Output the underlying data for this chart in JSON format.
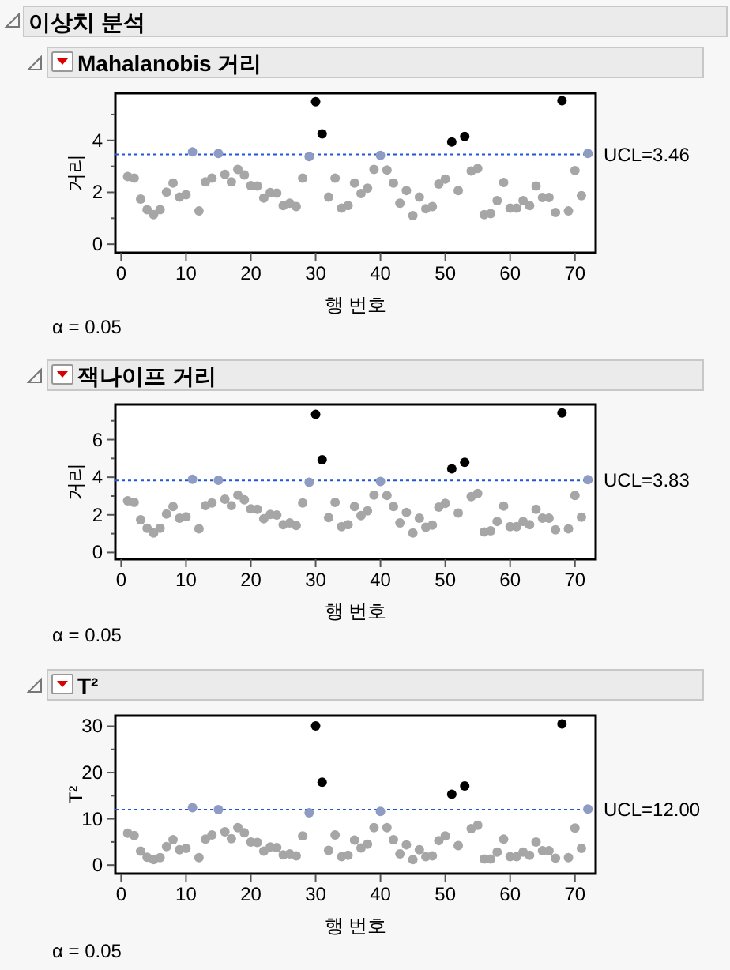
{
  "chart_data": [
    {
      "type": "scatter",
      "title": "이상치 분석",
      "subtitle": "Mahalanobis 거리",
      "xlabel": "행 번호",
      "ylabel": "거리",
      "annotations": [
        "α = 0.05"
      ],
      "marker": "circle",
      "x": [
        1,
        2,
        3,
        4,
        5,
        6,
        7,
        8,
        9,
        10,
        11,
        12,
        13,
        14,
        15,
        16,
        17,
        18,
        19,
        20,
        21,
        22,
        23,
        24,
        25,
        26,
        27,
        28,
        29,
        30,
        31,
        32,
        33,
        34,
        35,
        36,
        37,
        38,
        39,
        40,
        41,
        42,
        43,
        44,
        45,
        46,
        47,
        48,
        49,
        50,
        51,
        52,
        53,
        54,
        55,
        56,
        57,
        58,
        59,
        60,
        61,
        62,
        63,
        64,
        65,
        66,
        67,
        68,
        69,
        70,
        71,
        72
      ],
      "values": [
        2.61,
        2.55,
        1.74,
        1.33,
        1.14,
        1.33,
        2.01,
        2.36,
        1.82,
        1.91,
        3.56,
        1.28,
        2.4,
        2.55,
        3.5,
        2.69,
        2.4,
        2.88,
        2.67,
        2.26,
        2.24,
        1.78,
        1.99,
        1.97,
        1.49,
        1.58,
        1.45,
        2.55,
        3.38,
        5.49,
        4.25,
        1.82,
        2.55,
        1.39,
        1.49,
        2.36,
        1.95,
        2.16,
        2.88,
        3.42,
        2.86,
        2.36,
        1.58,
        2.07,
        1.1,
        1.82,
        1.37,
        1.45,
        2.32,
        2.51,
        3.94,
        2.07,
        4.15,
        2.82,
        2.92,
        1.14,
        1.18,
        1.68,
        2.38,
        1.39,
        1.39,
        1.68,
        1.49,
        2.24,
        1.8,
        1.8,
        1.22,
        5.53,
        1.28,
        2.84,
        1.87,
        3.5
      ],
      "colors": [
        "#a6a6a6",
        "#a6a6a6",
        "#a6a6a6",
        "#a6a6a6",
        "#a6a6a6",
        "#a6a6a6",
        "#a6a6a6",
        "#a6a6a6",
        "#a6a6a6",
        "#a6a6a6",
        "#8e9cc4",
        "#a6a6a6",
        "#a6a6a6",
        "#a6a6a6",
        "#8e9cc4",
        "#a6a6a6",
        "#a6a6a6",
        "#a6a6a6",
        "#a6a6a6",
        "#a6a6a6",
        "#a6a6a6",
        "#a6a6a6",
        "#a6a6a6",
        "#a6a6a6",
        "#a6a6a6",
        "#a6a6a6",
        "#a6a6a6",
        "#a6a6a6",
        "#8e9cc4",
        "#000000",
        "#000000",
        "#a6a6a6",
        "#a6a6a6",
        "#a6a6a6",
        "#a6a6a6",
        "#a6a6a6",
        "#a6a6a6",
        "#a6a6a6",
        "#a6a6a6",
        "#8e9cc4",
        "#a6a6a6",
        "#a6a6a6",
        "#a6a6a6",
        "#a6a6a6",
        "#a6a6a6",
        "#a6a6a6",
        "#a6a6a6",
        "#a6a6a6",
        "#a6a6a6",
        "#a6a6a6",
        "#000000",
        "#a6a6a6",
        "#000000",
        "#a6a6a6",
        "#a6a6a6",
        "#a6a6a6",
        "#a6a6a6",
        "#a6a6a6",
        "#a6a6a6",
        "#a6a6a6",
        "#a6a6a6",
        "#a6a6a6",
        "#a6a6a6",
        "#a6a6a6",
        "#a6a6a6",
        "#a6a6a6",
        "#a6a6a6",
        "#000000",
        "#a6a6a6",
        "#a6a6a6",
        "#a6a6a6",
        "#8e9cc4"
      ],
      "xlim": [
        -0.9,
        73.2
      ],
      "xticks": [
        0,
        10,
        20,
        30,
        40,
        50,
        60,
        70
      ],
      "ylim": [
        -0.33,
        5.82
      ],
      "yticks": [
        0,
        {
          "value": 1,
          "label": null
        },
        2,
        {
          "value": 3,
          "label": null
        },
        4,
        {
          "value": 5,
          "label": null
        }
      ],
      "ref_lines": [
        {
          "axis": "y",
          "value": 3.46,
          "label": "UCL=3.46",
          "color": "#2255dd",
          "line_style": "dotted"
        }
      ]
    },
    {
      "type": "scatter",
      "title": "잭나이프 거리",
      "xlabel": "행 번호",
      "ylabel": "거리",
      "annotations": [
        "α = 0.05"
      ],
      "marker": "circle",
      "x": [
        1,
        2,
        3,
        4,
        5,
        6,
        7,
        8,
        9,
        10,
        11,
        12,
        13,
        14,
        15,
        16,
        17,
        18,
        19,
        20,
        21,
        22,
        23,
        24,
        25,
        26,
        27,
        28,
        29,
        30,
        31,
        32,
        33,
        34,
        35,
        36,
        37,
        38,
        39,
        40,
        41,
        42,
        43,
        44,
        45,
        46,
        47,
        48,
        49,
        50,
        51,
        52,
        53,
        54,
        55,
        56,
        57,
        58,
        59,
        60,
        61,
        62,
        63,
        64,
        65,
        66,
        67,
        68,
        69,
        70,
        71,
        72
      ],
      "values": [
        2.75,
        2.66,
        1.74,
        1.29,
        1.04,
        1.29,
        2.04,
        2.44,
        1.82,
        1.9,
        3.89,
        1.26,
        2.49,
        2.63,
        3.84,
        2.83,
        2.49,
        3.05,
        2.8,
        2.32,
        2.3,
        1.79,
        2.02,
        1.99,
        1.48,
        1.57,
        1.43,
        2.63,
        3.73,
        7.34,
        4.93,
        1.85,
        2.66,
        1.37,
        1.48,
        2.44,
        1.96,
        2.21,
        3.05,
        3.78,
        3.03,
        2.44,
        1.57,
        2.13,
        1.04,
        1.82,
        1.34,
        1.46,
        2.41,
        2.61,
        4.45,
        2.1,
        4.79,
        2.97,
        3.14,
        1.09,
        1.15,
        1.65,
        2.46,
        1.37,
        1.37,
        1.65,
        1.48,
        2.3,
        1.82,
        1.82,
        1.2,
        7.42,
        1.26,
        3.03,
        1.88,
        3.87
      ],
      "colors": [
        "#a6a6a6",
        "#a6a6a6",
        "#a6a6a6",
        "#a6a6a6",
        "#a6a6a6",
        "#a6a6a6",
        "#a6a6a6",
        "#a6a6a6",
        "#a6a6a6",
        "#a6a6a6",
        "#8e9cc4",
        "#a6a6a6",
        "#a6a6a6",
        "#a6a6a6",
        "#8e9cc4",
        "#a6a6a6",
        "#a6a6a6",
        "#a6a6a6",
        "#a6a6a6",
        "#a6a6a6",
        "#a6a6a6",
        "#a6a6a6",
        "#a6a6a6",
        "#a6a6a6",
        "#a6a6a6",
        "#a6a6a6",
        "#a6a6a6",
        "#a6a6a6",
        "#8e9cc4",
        "#000000",
        "#000000",
        "#a6a6a6",
        "#a6a6a6",
        "#a6a6a6",
        "#a6a6a6",
        "#a6a6a6",
        "#a6a6a6",
        "#a6a6a6",
        "#a6a6a6",
        "#8e9cc4",
        "#a6a6a6",
        "#a6a6a6",
        "#a6a6a6",
        "#a6a6a6",
        "#a6a6a6",
        "#a6a6a6",
        "#a6a6a6",
        "#a6a6a6",
        "#a6a6a6",
        "#a6a6a6",
        "#000000",
        "#a6a6a6",
        "#000000",
        "#a6a6a6",
        "#a6a6a6",
        "#a6a6a6",
        "#a6a6a6",
        "#a6a6a6",
        "#a6a6a6",
        "#a6a6a6",
        "#a6a6a6",
        "#a6a6a6",
        "#a6a6a6",
        "#a6a6a6",
        "#a6a6a6",
        "#a6a6a6",
        "#a6a6a6",
        "#000000",
        "#a6a6a6",
        "#a6a6a6",
        "#a6a6a6",
        "#8e9cc4"
      ],
      "xlim": [
        -0.9,
        73.2
      ],
      "xticks": [
        0,
        10,
        20,
        30,
        40,
        50,
        60,
        70
      ],
      "ylim": [
        -0.36,
        7.87
      ],
      "yticks": [
        0,
        {
          "value": 1,
          "label": null
        },
        2,
        {
          "value": 3,
          "label": null
        },
        4,
        {
          "value": 5,
          "label": null
        },
        6,
        {
          "value": 7,
          "label": null
        }
      ],
      "ref_lines": [
        {
          "axis": "y",
          "value": 3.83,
          "label": "UCL=3.83",
          "color": "#2255dd",
          "line_style": "dotted"
        }
      ]
    },
    {
      "type": "scatter",
      "title": "T²",
      "xlabel": "행 번호",
      "ylabel": "T²",
      "annotations": [
        "α = 0.05"
      ],
      "marker": "circle",
      "x": [
        1,
        2,
        3,
        4,
        5,
        6,
        7,
        8,
        9,
        10,
        11,
        12,
        13,
        14,
        15,
        16,
        17,
        18,
        19,
        20,
        21,
        22,
        23,
        24,
        25,
        26,
        27,
        28,
        29,
        30,
        31,
        32,
        33,
        34,
        35,
        36,
        37,
        38,
        39,
        40,
        41,
        42,
        43,
        44,
        45,
        46,
        47,
        48,
        49,
        50,
        51,
        52,
        53,
        54,
        55,
        56,
        57,
        58,
        59,
        60,
        61,
        62,
        63,
        64,
        65,
        66,
        67,
        68,
        69,
        70,
        71,
        72
      ],
      "values": [
        6.9,
        6.4,
        3.0,
        1.7,
        1.2,
        1.6,
        4.0,
        5.5,
        3.3,
        3.6,
        12.4,
        1.6,
        5.6,
        6.5,
        12.0,
        7.2,
        5.7,
        8.1,
        7.0,
        5.0,
        4.9,
        3.0,
        3.9,
        3.8,
        2.2,
        2.4,
        2.0,
        6.3,
        11.3,
        30.1,
        17.9,
        3.2,
        6.5,
        1.8,
        2.1,
        5.4,
        3.7,
        4.5,
        8.1,
        11.6,
        8.1,
        5.5,
        2.4,
        4.4,
        1.2,
        3.3,
        1.8,
        2.0,
        5.3,
        6.3,
        15.3,
        4.2,
        17.1,
        7.9,
        8.6,
        1.3,
        1.3,
        2.8,
        5.6,
        1.8,
        1.8,
        2.8,
        2.1,
        5.0,
        3.1,
        3.1,
        1.5,
        30.5,
        1.6,
        8.0,
        3.6,
        12.1
      ],
      "colors": [
        "#a6a6a6",
        "#a6a6a6",
        "#a6a6a6",
        "#a6a6a6",
        "#a6a6a6",
        "#a6a6a6",
        "#a6a6a6",
        "#a6a6a6",
        "#a6a6a6",
        "#a6a6a6",
        "#8e9cc4",
        "#a6a6a6",
        "#a6a6a6",
        "#a6a6a6",
        "#8e9cc4",
        "#a6a6a6",
        "#a6a6a6",
        "#a6a6a6",
        "#a6a6a6",
        "#a6a6a6",
        "#a6a6a6",
        "#a6a6a6",
        "#a6a6a6",
        "#a6a6a6",
        "#a6a6a6",
        "#a6a6a6",
        "#a6a6a6",
        "#a6a6a6",
        "#8e9cc4",
        "#000000",
        "#000000",
        "#a6a6a6",
        "#a6a6a6",
        "#a6a6a6",
        "#a6a6a6",
        "#a6a6a6",
        "#a6a6a6",
        "#a6a6a6",
        "#a6a6a6",
        "#8e9cc4",
        "#a6a6a6",
        "#a6a6a6",
        "#a6a6a6",
        "#a6a6a6",
        "#a6a6a6",
        "#a6a6a6",
        "#a6a6a6",
        "#a6a6a6",
        "#a6a6a6",
        "#a6a6a6",
        "#000000",
        "#a6a6a6",
        "#000000",
        "#a6a6a6",
        "#a6a6a6",
        "#a6a6a6",
        "#a6a6a6",
        "#a6a6a6",
        "#a6a6a6",
        "#a6a6a6",
        "#a6a6a6",
        "#a6a6a6",
        "#a6a6a6",
        "#a6a6a6",
        "#a6a6a6",
        "#a6a6a6",
        "#a6a6a6",
        "#000000",
        "#a6a6a6",
        "#a6a6a6",
        "#a6a6a6",
        "#8e9cc4"
      ],
      "xlim": [
        -0.9,
        73.2
      ],
      "xticks": [
        0,
        10,
        20,
        30,
        40,
        50,
        60,
        70
      ],
      "ylim": [
        -1.85,
        32.3
      ],
      "yticks": [
        0,
        {
          "value": 5,
          "label": null
        },
        10,
        {
          "value": 15,
          "label": null
        },
        20,
        {
          "value": 25,
          "label": null
        },
        30
      ],
      "ref_lines": [
        {
          "axis": "y",
          "value": 12.0,
          "label": "UCL=12.00",
          "color": "#2255dd",
          "line_style": "dotted"
        }
      ]
    }
  ]
}
